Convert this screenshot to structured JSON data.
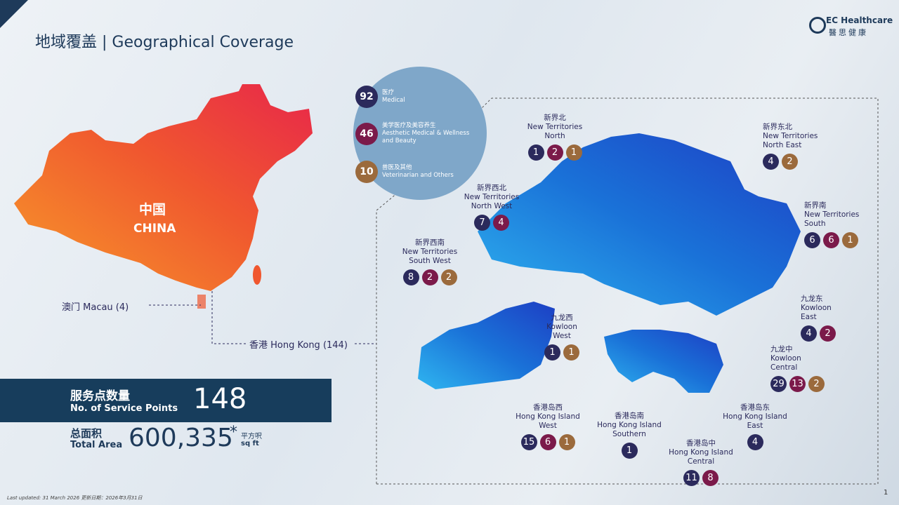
{
  "header": {
    "title": "地域覆盖 | Geographical Coverage",
    "logo_en": "EC Healthcare",
    "logo_zh": "醫思健康"
  },
  "legend": [
    {
      "count": "92",
      "zh": "医疗",
      "en": "Medical",
      "color": "#2b2a5c"
    },
    {
      "count": "46",
      "zh": "美学医疗及美容养生",
      "en": "Aesthetic Medical & Wellness and Beauty",
      "color": "#7b1a4a"
    },
    {
      "count": "10",
      "zh": "兽医及其他",
      "en": "Veterinarian and Others",
      "color": "#9b6a3c"
    }
  ],
  "china": {
    "zh": "中国",
    "en": "CHINA"
  },
  "macau": "澳门 Macau (4)",
  "hong_kong": "香港 Hong Kong (144)",
  "summary": {
    "points_zh": "服务点数量",
    "points_en": "No. of Service Points",
    "points_value": "148",
    "area_zh": "总面积",
    "area_en": "Total Area",
    "area_value": "600,335",
    "area_note": "*",
    "area_unit_zh": "平方呎",
    "area_unit_en": "sq ft"
  },
  "districts": [
    {
      "zh": "新界北",
      "en": [
        "New Territories",
        "North"
      ],
      "counts": [
        {
          "value": "1",
          "color": "#2b2a5c"
        },
        {
          "value": "2",
          "color": "#7b1a4a"
        },
        {
          "value": "1",
          "color": "#9b6a3c"
        }
      ]
    },
    {
      "zh": "新界东北",
      "en": [
        "New Territories",
        "North East"
      ],
      "counts": [
        {
          "value": "4",
          "color": "#2b2a5c"
        },
        {
          "value": "2",
          "color": "#9b6a3c"
        }
      ]
    },
    {
      "zh": "新界西北",
      "en": [
        "New Territories",
        "North West"
      ],
      "counts": [
        {
          "value": "7",
          "color": "#2b2a5c"
        },
        {
          "value": "4",
          "color": "#7b1a4a"
        }
      ]
    },
    {
      "zh": "新界西南",
      "en": [
        "New Territories",
        "South West"
      ],
      "counts": [
        {
          "value": "8",
          "color": "#2b2a5c"
        },
        {
          "value": "2",
          "color": "#7b1a4a"
        },
        {
          "value": "2",
          "color": "#9b6a3c"
        }
      ]
    },
    {
      "zh": "新界南",
      "en": [
        "New Territories",
        "South"
      ],
      "counts": [
        {
          "value": "6",
          "color": "#2b2a5c"
        },
        {
          "value": "6",
          "color": "#7b1a4a"
        },
        {
          "value": "1",
          "color": "#9b6a3c"
        }
      ]
    },
    {
      "zh": "九龙西",
      "en": [
        "Kowloon",
        "West"
      ],
      "counts": [
        {
          "value": "1",
          "color": "#2b2a5c"
        },
        {
          "value": "1",
          "color": "#9b6a3c"
        }
      ]
    },
    {
      "zh": "九龙东",
      "en": [
        "Kowloon",
        "East"
      ],
      "counts": [
        {
          "value": "4",
          "color": "#2b2a5c"
        },
        {
          "value": "2",
          "color": "#7b1a4a"
        }
      ]
    },
    {
      "zh": "九龙中",
      "en": [
        "Kowloon",
        "Central"
      ],
      "counts": [
        {
          "value": "29",
          "color": "#2b2a5c"
        },
        {
          "value": "13",
          "color": "#7b1a4a"
        },
        {
          "value": "2",
          "color": "#9b6a3c"
        }
      ]
    },
    {
      "zh": "香港岛西",
      "en": [
        "Hong Kong Island",
        "West"
      ],
      "counts": [
        {
          "value": "15",
          "color": "#2b2a5c"
        },
        {
          "value": "6",
          "color": "#7b1a4a"
        },
        {
          "value": "1",
          "color": "#9b6a3c"
        }
      ]
    },
    {
      "zh": "香港岛南",
      "en": [
        "Hong Kong Island",
        "Southern"
      ],
      "counts": [
        {
          "value": "1",
          "color": "#2b2a5c"
        }
      ]
    },
    {
      "zh": "香港岛中",
      "en": [
        "Hong Kong Island",
        "Central"
      ],
      "counts": [
        {
          "value": "11",
          "color": "#2b2a5c"
        },
        {
          "value": "8",
          "color": "#7b1a4a"
        }
      ]
    },
    {
      "zh": "香港岛东",
      "en": [
        "Hong Kong Island",
        "East"
      ],
      "counts": [
        {
          "value": "4",
          "color": "#2b2a5c"
        }
      ]
    }
  ],
  "footer": {
    "updated": "Last updated: 31 March 2026 更新日期：2026年3月31日",
    "page": "1"
  }
}
